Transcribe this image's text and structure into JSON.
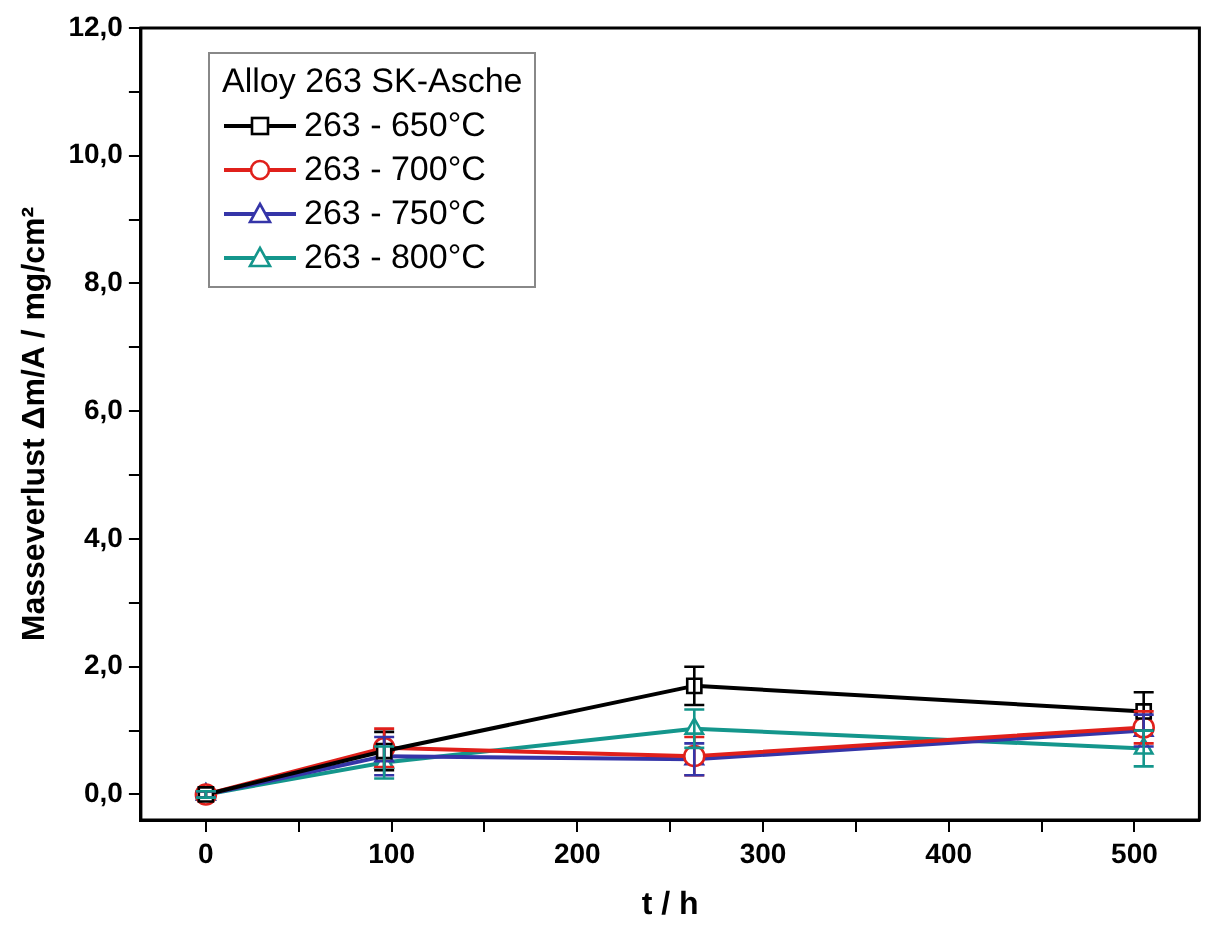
{
  "chart_data": {
    "type": "line",
    "xlabel": "t / h",
    "ylabel": "Masseverlust Δm/A / mg/cm²",
    "legend_title": "Alloy 263 SK-Asche",
    "legend": "top left",
    "grid": false,
    "line_style": "solid",
    "xlim": [
      -35,
      535
    ],
    "xticks": [
      0,
      {
        "value": 50,
        "label": null
      },
      100,
      {
        "value": 150,
        "label": null
      },
      200,
      {
        "value": 250,
        "label": null
      },
      300,
      {
        "value": 350,
        "label": null
      },
      400,
      {
        "value": 450,
        "label": null
      },
      500
    ],
    "ylim": [
      -0.4,
      12
    ],
    "yticks": [
      {
        "value": 0,
        "label": "0,0"
      },
      {
        "value": 1,
        "label": null
      },
      {
        "value": 2,
        "label": "2,0"
      },
      {
        "value": 3,
        "label": null
      },
      {
        "value": 4,
        "label": "4,0"
      },
      {
        "value": 5,
        "label": null
      },
      {
        "value": 6,
        "label": "6,0"
      },
      {
        "value": 7,
        "label": null
      },
      {
        "value": 8,
        "label": "8,0"
      },
      {
        "value": 9,
        "label": null
      },
      {
        "value": 10,
        "label": "10,0"
      },
      {
        "value": 11,
        "label": null
      },
      {
        "value": 12,
        "label": "12,0"
      }
    ],
    "x": [
      0,
      96,
      263,
      505
    ],
    "series": [
      {
        "name": "263 - 650°C",
        "color": "#000000",
        "marker": "square",
        "values": [
          0,
          0.68,
          1.7,
          1.3
        ],
        "errors": [
          0.05,
          0.3,
          0.3,
          0.3
        ]
      },
      {
        "name": "263 - 700°C",
        "color": "#e0201b",
        "marker": "circle",
        "values": [
          0,
          0.73,
          0.6,
          1.05
        ],
        "errors": [
          0.05,
          0.3,
          0.3,
          0.25
        ]
      },
      {
        "name": "263 - 750°C",
        "color": "#3535a8",
        "marker": "triangle",
        "values": [
          0,
          0.6,
          0.55,
          1.0
        ],
        "errors": [
          0.05,
          0.3,
          0.25,
          0.25
        ]
      },
      {
        "name": "263 - 800°C",
        "color": "#14968c",
        "marker": "triangle",
        "values": [
          0,
          0.5,
          1.03,
          0.72
        ],
        "errors": [
          0.05,
          0.25,
          0.3,
          0.28
        ]
      }
    ]
  }
}
